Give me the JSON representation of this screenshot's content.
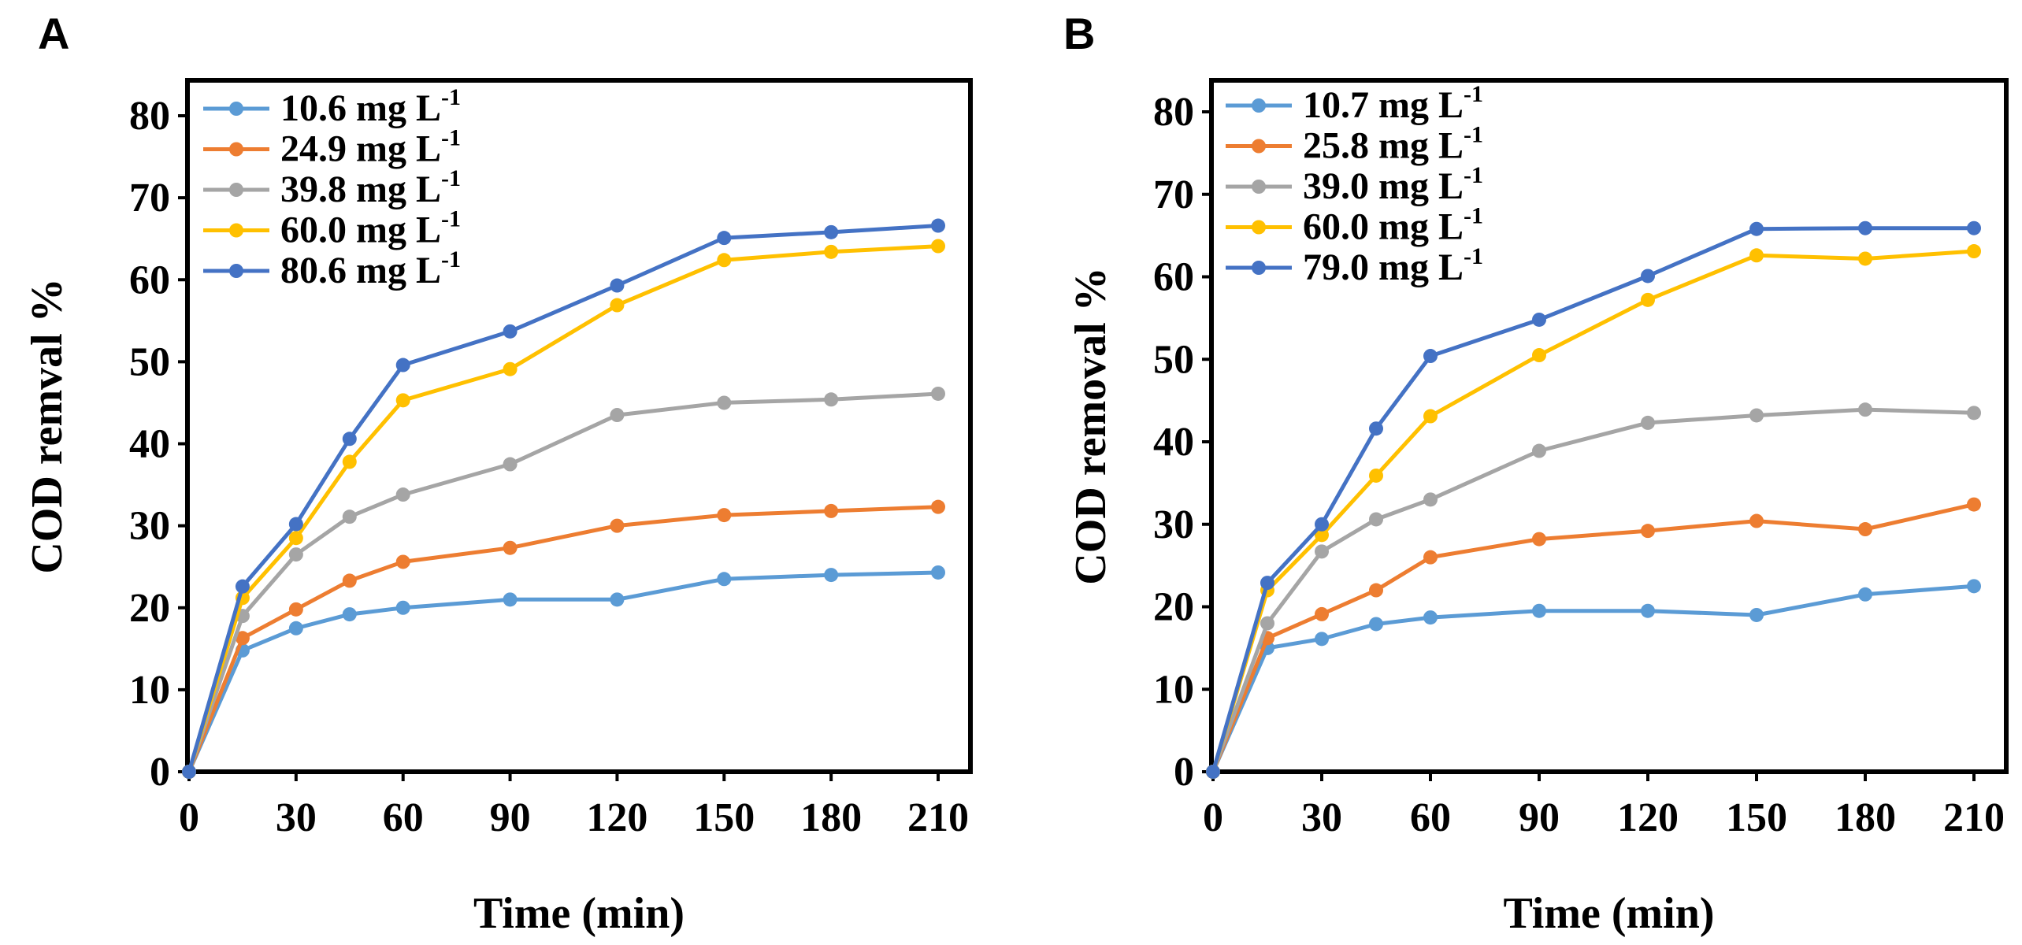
{
  "chart_data": [
    {
      "type": "line",
      "panel_label": "A",
      "xlabel": "Time (min)",
      "ylabel": "COD remval  %",
      "xlim": [
        0,
        210
      ],
      "ylim": [
        0,
        85
      ],
      "xticks": [
        0,
        30,
        60,
        90,
        120,
        150,
        180,
        210
      ],
      "yticks": [
        0,
        10,
        20,
        30,
        40,
        50,
        60,
        70,
        80
      ],
      "grid": false,
      "legend_position": "top-left",
      "x": [
        0,
        15,
        30,
        45,
        60,
        90,
        120,
        150,
        180,
        210
      ],
      "series": [
        {
          "name": "10.6 mg L",
          "sup": "-1",
          "color": "#5b9bd5",
          "values": [
            0,
            14.8,
            17.5,
            19.2,
            20.0,
            21.0,
            21.0,
            23.5,
            24.0,
            24.3
          ]
        },
        {
          "name": "24.9 mg L",
          "sup": "-1",
          "color": "#ed7d31",
          "values": [
            0,
            16.3,
            19.8,
            23.3,
            25.6,
            27.3,
            30.0,
            31.3,
            31.8,
            32.3
          ]
        },
        {
          "name": "39.8 mg L",
          "sup": "-1",
          "color": "#a5a5a5",
          "values": [
            0,
            19.0,
            26.5,
            31.1,
            33.8,
            37.5,
            43.5,
            45.0,
            45.4,
            46.1
          ]
        },
        {
          "name": "60.0 mg L",
          "sup": "-1",
          "color": "#ffc000",
          "values": [
            0,
            21.2,
            28.5,
            37.8,
            45.3,
            49.1,
            56.9,
            62.4,
            63.4,
            64.1
          ]
        },
        {
          "name": "80.6 mg L",
          "sup": "-1",
          "color": "#4472c4",
          "values": [
            0,
            22.6,
            30.2,
            40.6,
            49.6,
            53.7,
            59.3,
            65.1,
            65.8,
            66.6
          ]
        }
      ]
    },
    {
      "type": "line",
      "panel_label": "B",
      "xlabel": "Time (min)",
      "ylabel": "COD removal  %",
      "xlim": [
        0,
        210
      ],
      "ylim": [
        0,
        85
      ],
      "xticks": [
        0,
        30,
        60,
        90,
        120,
        150,
        180,
        210
      ],
      "yticks": [
        0,
        10,
        20,
        30,
        40,
        50,
        60,
        70,
        80
      ],
      "grid": false,
      "legend_position": "top-left",
      "x": [
        0,
        15,
        30,
        45,
        60,
        90,
        120,
        150,
        180,
        210
      ],
      "series": [
        {
          "name": "10.7 mg L",
          "sup": "-1",
          "color": "#5b9bd5",
          "values": [
            0,
            15.0,
            16.1,
            17.9,
            18.7,
            19.5,
            19.5,
            19.0,
            21.5,
            22.5
          ]
        },
        {
          "name": "25.8 mg L",
          "sup": "-1",
          "color": "#ed7d31",
          "values": [
            0,
            16.2,
            19.1,
            22.0,
            26.0,
            28.2,
            29.2,
            30.4,
            29.4,
            32.4
          ]
        },
        {
          "name": "39.0 mg L",
          "sup": "-1",
          "color": "#a5a5a5",
          "values": [
            0,
            18.0,
            26.7,
            30.6,
            33.0,
            38.9,
            42.3,
            43.2,
            43.9,
            43.5
          ]
        },
        {
          "name": "60.0 mg L",
          "sup": "-1",
          "color": "#ffc000",
          "values": [
            0,
            22.0,
            28.7,
            35.9,
            43.1,
            50.5,
            57.2,
            62.6,
            62.2,
            63.1
          ]
        },
        {
          "name": "79.0 mg L",
          "sup": "-1",
          "color": "#4472c4",
          "values": [
            0,
            22.9,
            30.0,
            41.6,
            50.4,
            54.8,
            60.1,
            65.8,
            65.9,
            65.9
          ]
        }
      ]
    }
  ]
}
